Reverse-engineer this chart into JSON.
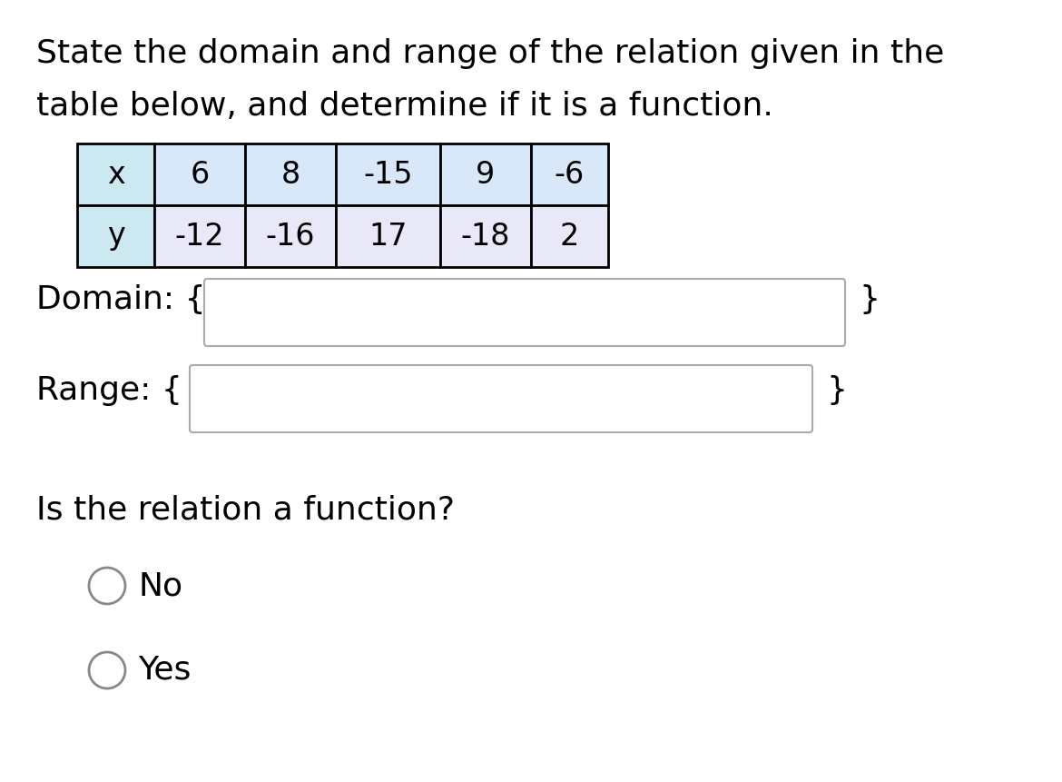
{
  "title_line1": "State the domain and range of the relation given in the",
  "title_line2": "table below, and determine if it is a function.",
  "x_values": [
    "x",
    "6",
    "8",
    "-15",
    "9",
    "-6"
  ],
  "y_values": [
    "y",
    "-12",
    "-16",
    "17",
    "-18",
    "2"
  ],
  "domain_label": "Domain: {",
  "domain_close": "}",
  "range_label": "Range: {",
  "range_close": "}",
  "question": "Is the relation a function?",
  "option1": "No",
  "option2": "Yes",
  "bg_color": "#ffffff",
  "table_x_bg": "#cce8f0",
  "table_data_x_bg": "#d8e8f8",
  "table_y_bg": "#cce8f0",
  "table_data_y_bg": "#e8e8f8",
  "table_border_color": "#000000",
  "text_color": "#000000",
  "font_size_title": 26,
  "font_size_table": 24,
  "font_size_labels": 26,
  "font_size_question": 26,
  "font_size_options": 26,
  "input_box_bg": "#ffffff",
  "input_box_border": "#aaaaaa"
}
